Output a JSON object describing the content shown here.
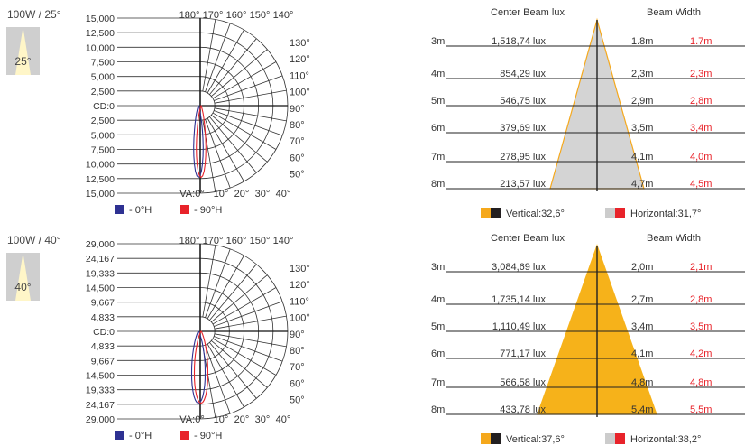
{
  "panels": [
    {
      "title": "100W / 25°",
      "angle_label": "25°",
      "cd_labels": [
        "15,000",
        "12,500",
        "10,000",
        "7,500",
        "5,000",
        "2,500",
        "CD:0",
        "2,500",
        "5,000",
        "7,500",
        "10,000",
        "12,500",
        "15,000"
      ],
      "top_angles": [
        "180°",
        "170°",
        "160°",
        "150°",
        "140°"
      ],
      "right_angles": [
        "130°",
        "120°",
        "110°",
        "100°",
        "90°",
        "80°",
        "70°",
        "60°",
        "50°"
      ],
      "bottom_angles": [
        "VA:0°",
        "10°",
        "20°",
        "30°",
        "40°"
      ],
      "legend": [
        {
          "label": "- 0°H",
          "color": "#2e3192"
        },
        {
          "label": "- 90°H",
          "color": "#e8232a"
        }
      ],
      "polar_curve": {
        "max_cd": 15000,
        "c0_intensity_half_angle_deg": 12.5,
        "c90_intensity_half_angle_deg": 12.5
      },
      "beam": {
        "col_lux": "Center Beam lux",
        "col_width": "Beam Width",
        "fill": "#d4d4d4",
        "edge": "#f5a81c",
        "rows": [
          {
            "dist": "3m",
            "lux": "1,518,74 lux",
            "v": "1.8m",
            "h": "1.7m"
          },
          {
            "dist": "4m",
            "lux": "854,29 lux",
            "v": "2,3m",
            "h": "2,3m"
          },
          {
            "dist": "5m",
            "lux": "546,75 lux",
            "v": "2,9m",
            "h": "2,8m"
          },
          {
            "dist": "6m",
            "lux": "379,69 lux",
            "v": "3,5m",
            "h": "3,4m"
          },
          {
            "dist": "7m",
            "lux": "278,95 lux",
            "v": "4,1m",
            "h": "4,0m"
          },
          {
            "dist": "8m",
            "lux": "213,57 lux",
            "v": "4,7m",
            "h": "4,5m"
          }
        ],
        "vertical_label": "Vertical:32,6°",
        "horizontal_label": "Horizontal:31,7°",
        "vertical_colors": [
          "#f5a81c",
          "#231f20"
        ],
        "horizontal_colors": [
          "#cccccc",
          "#e8232a"
        ]
      }
    },
    {
      "title": "100W / 40°",
      "angle_label": "40°",
      "cd_labels": [
        "29,000",
        "24,167",
        "19,333",
        "14,500",
        "9,667",
        "4,833",
        "CD:0",
        "4,833",
        "9,667",
        "14,500",
        "19,333",
        "24,167",
        "29,000"
      ],
      "top_angles": [
        "180°",
        "170°",
        "160°",
        "150°",
        "140°"
      ],
      "right_angles": [
        "130°",
        "120°",
        "110°",
        "100°",
        "90°",
        "80°",
        "70°",
        "60°",
        "50°"
      ],
      "bottom_angles": [
        "VA:0°",
        "10°",
        "20°",
        "30°",
        "40°"
      ],
      "legend": [
        {
          "label": "- 0°H",
          "color": "#2e3192"
        },
        {
          "label": "- 90°H",
          "color": "#e8232a"
        }
      ],
      "polar_curve": {
        "max_cd": 29000,
        "c0_intensity_half_angle_deg": 20,
        "c90_intensity_half_angle_deg": 20
      },
      "beam": {
        "col_lux": "Center Beam lux",
        "col_width": "Beam Width",
        "fill": "#f6b21a",
        "edge": "#f6b21a",
        "rows": [
          {
            "dist": "3m",
            "lux": "3,084,69 lux",
            "v": "2,0m",
            "h": "2,1m"
          },
          {
            "dist": "4m",
            "lux": "1,735,14 lux",
            "v": "2,7m",
            "h": "2,8m"
          },
          {
            "dist": "5m",
            "lux": "1,110,49 lux",
            "v": "3,4m",
            "h": "3,5m"
          },
          {
            "dist": "6m",
            "lux": "771,17 lux",
            "v": "4,1m",
            "h": "4,2m"
          },
          {
            "dist": "7m",
            "lux": "566,58 lux",
            "v": "4,8m",
            "h": "4,8m"
          },
          {
            "dist": "8m",
            "lux": "433,78 lux",
            "v": "5,4m",
            "h": "5,5m"
          }
        ],
        "vertical_label": "Vertical:37,6°",
        "horizontal_label": "Horizontal:38,2°",
        "vertical_colors": [
          "#f5a81c",
          "#231f20"
        ],
        "horizontal_colors": [
          "#cccccc",
          "#e8232a"
        ]
      }
    }
  ],
  "chart_data": [
    {
      "type": "table",
      "title": "100W / 25°",
      "columns": [
        "",
        "Center Beam lux",
        "Beam Width",
        ""
      ],
      "rows": [
        [
          "3m",
          "1,518,74 lux",
          "1.8m",
          "1.7m"
        ],
        [
          "4m",
          "854,29 lux",
          "2,3m",
          "2,3m"
        ],
        [
          "5m",
          "546,75 lux",
          "2,9m",
          "2,8m"
        ],
        [
          "6m",
          "379,69 lux",
          "3,5m",
          "3,4m"
        ],
        [
          "7m",
          "278,95 lux",
          "4,1m",
          "4,0m"
        ],
        [
          "8m",
          "213,57 lux",
          "4,7m",
          "4,5m"
        ]
      ],
      "legend": [
        "Vertical:32,6°",
        "Horizontal:31,7°"
      ]
    },
    {
      "type": "table",
      "title": "100W / 40°",
      "columns": [
        "",
        "Center Beam lux",
        "Beam Width",
        ""
      ],
      "rows": [
        [
          "3m",
          "3,084,69 lux",
          "2,0m",
          "2,1m"
        ],
        [
          "4m",
          "1,735,14 lux",
          "2,7m",
          "2,8m"
        ],
        [
          "5m",
          "1,110,49 lux",
          "3,4m",
          "3,5m"
        ],
        [
          "6m",
          "771,17 lux",
          "4,1m",
          "4,2m"
        ],
        [
          "7m",
          "566,58 lux",
          "4,8m",
          "4,8m"
        ],
        [
          "8m",
          "433,78 lux",
          "5,4m",
          "5,5m"
        ]
      ],
      "legend": [
        "Vertical:37,6°",
        "Horizontal:38,2°"
      ]
    }
  ]
}
